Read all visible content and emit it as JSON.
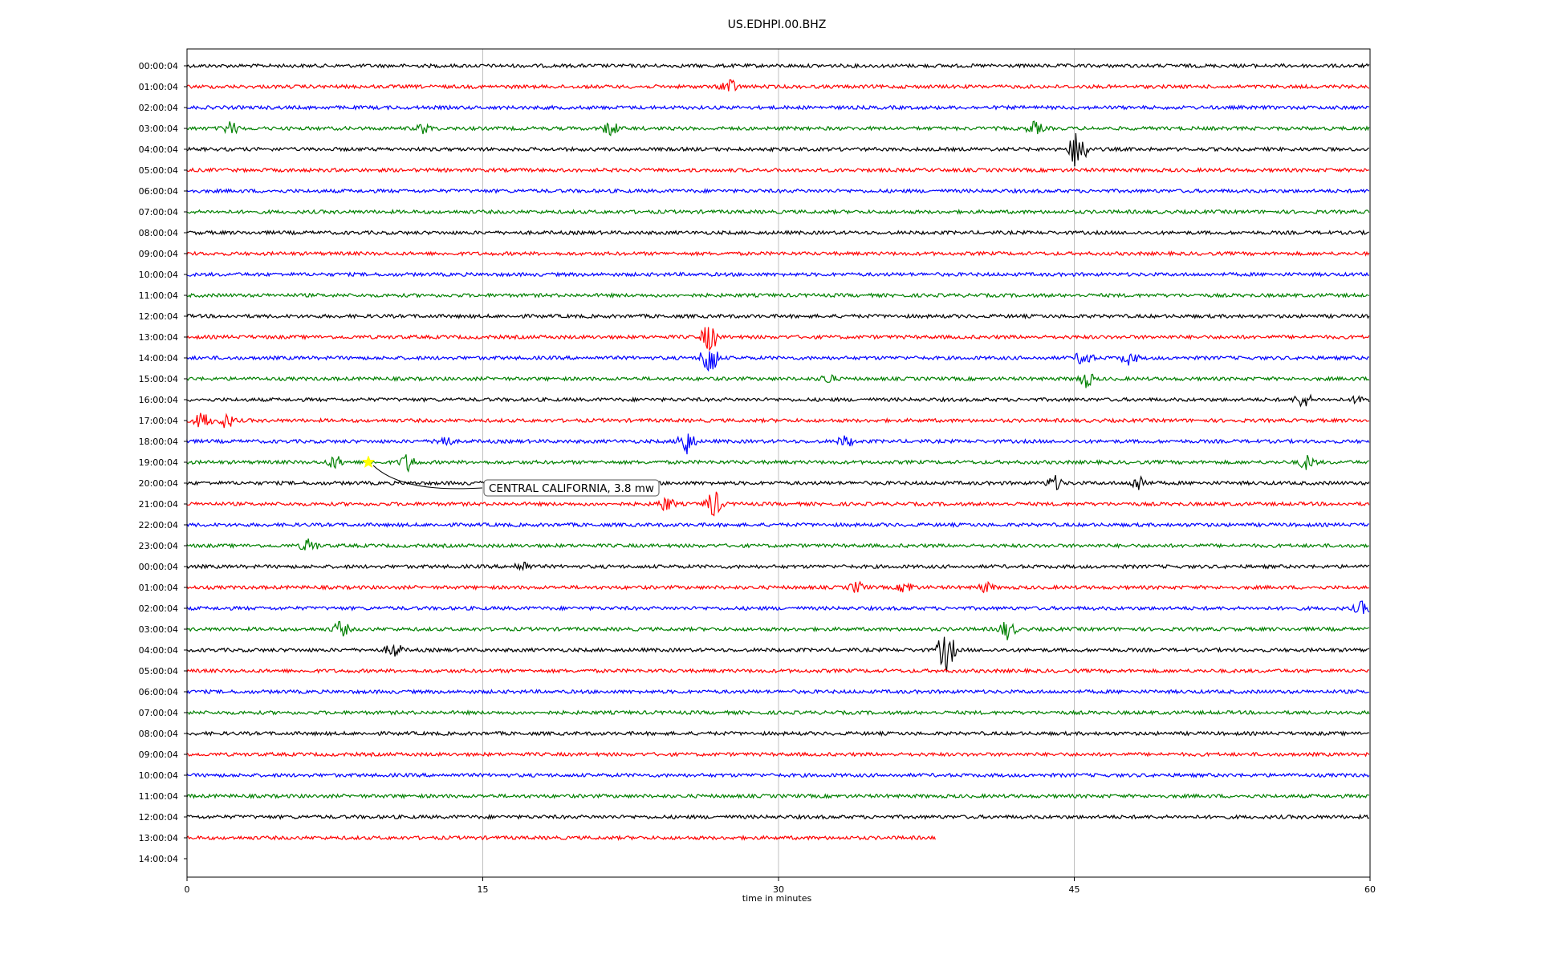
{
  "chart_data": {
    "type": "line",
    "title": "US.EDHPI.00.BHZ",
    "xlabel": "time in minutes",
    "ylabel": "",
    "xlim": [
      0,
      60
    ],
    "x_ticks": [
      "0",
      "15",
      "30",
      "45",
      "60"
    ],
    "x_tick_values": [
      0,
      15,
      30,
      45,
      60
    ],
    "grid": "vertical lines at 15, 30, 45",
    "color_cycle": [
      "#000000",
      "#ff0000",
      "#0000ff",
      "#008000"
    ],
    "row_labels": [
      "00:00:04",
      "01:00:04",
      "02:00:04",
      "03:00:04",
      "04:00:04",
      "05:00:04",
      "06:00:04",
      "07:00:04",
      "08:00:04",
      "09:00:04",
      "10:00:04",
      "11:00:04",
      "12:00:04",
      "13:00:04",
      "14:00:04",
      "15:00:04",
      "16:00:04",
      "17:00:04",
      "18:00:04",
      "19:00:04",
      "20:00:04",
      "21:00:04",
      "22:00:04",
      "23:00:04",
      "00:00:04",
      "01:00:04",
      "02:00:04",
      "03:00:04",
      "04:00:04",
      "05:00:04",
      "06:00:04",
      "07:00:04",
      "08:00:04",
      "09:00:04",
      "10:00:04",
      "11:00:04",
      "12:00:04",
      "13:00:04",
      "14:00:04"
    ],
    "last_trace_end_minute": 38,
    "bursts": [
      {
        "row": 1,
        "minute": 27.5,
        "amp": 10
      },
      {
        "row": 3,
        "minute": 2.2,
        "amp": 8
      },
      {
        "row": 3,
        "minute": 12,
        "amp": 6
      },
      {
        "row": 3,
        "minute": 21.5,
        "amp": 9
      },
      {
        "row": 3,
        "minute": 43,
        "amp": 8
      },
      {
        "row": 4,
        "minute": 45.2,
        "amp": 30
      },
      {
        "row": 13,
        "minute": 26.5,
        "amp": 18
      },
      {
        "row": 14,
        "minute": 26.5,
        "amp": 25
      },
      {
        "row": 14,
        "minute": 45.5,
        "amp": 10
      },
      {
        "row": 14,
        "minute": 47.8,
        "amp": 8
      },
      {
        "row": 15,
        "minute": 45.6,
        "amp": 10
      },
      {
        "row": 15,
        "minute": 32.5,
        "amp": 6
      },
      {
        "row": 16,
        "minute": 56.6,
        "amp": 10
      },
      {
        "row": 16,
        "minute": 59.6,
        "amp": 9
      },
      {
        "row": 17,
        "minute": 0.8,
        "amp": 11
      },
      {
        "row": 17,
        "minute": 2,
        "amp": 9
      },
      {
        "row": 18,
        "minute": 25.3,
        "amp": 18
      },
      {
        "row": 18,
        "minute": 13,
        "amp": 8
      },
      {
        "row": 18,
        "minute": 33.4,
        "amp": 7
      },
      {
        "row": 19,
        "minute": 7.5,
        "amp": 8
      },
      {
        "row": 19,
        "minute": 11.2,
        "amp": 11
      },
      {
        "row": 19,
        "minute": 56.8,
        "amp": 9
      },
      {
        "row": 20,
        "minute": 48.3,
        "amp": 10
      },
      {
        "row": 20,
        "minute": 44,
        "amp": 9
      },
      {
        "row": 21,
        "minute": 26.7,
        "amp": 18
      },
      {
        "row": 21,
        "minute": 24.3,
        "amp": 9
      },
      {
        "row": 23,
        "minute": 6.2,
        "amp": 9
      },
      {
        "row": 24,
        "minute": 17,
        "amp": 7
      },
      {
        "row": 25,
        "minute": 34,
        "amp": 7
      },
      {
        "row": 25,
        "minute": 36.5,
        "amp": 7
      },
      {
        "row": 25,
        "minute": 40.5,
        "amp": 6
      },
      {
        "row": 26,
        "minute": 59.6,
        "amp": 8
      },
      {
        "row": 27,
        "minute": 7.8,
        "amp": 10
      },
      {
        "row": 27,
        "minute": 41.6,
        "amp": 12
      },
      {
        "row": 28,
        "minute": 38.5,
        "amp": 28
      },
      {
        "row": 28,
        "minute": 10.5,
        "amp": 9
      }
    ],
    "annotation": {
      "text": "CENTRAL CALIFORNIA, 3.8 mw",
      "row": 19,
      "minute": 9.2,
      "marker": "star",
      "marker_color": "#ffff00"
    }
  }
}
